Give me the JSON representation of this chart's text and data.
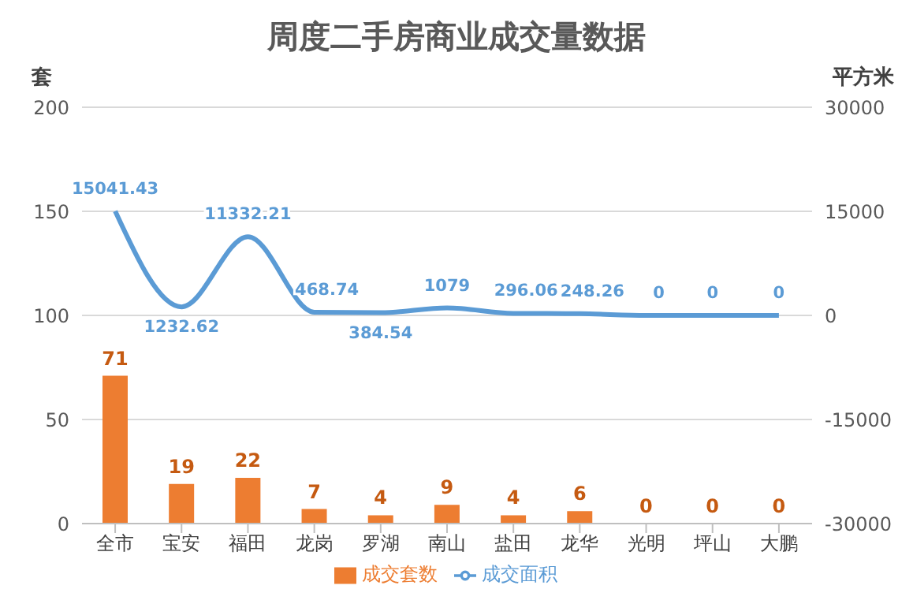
{
  "chart_data": {
    "type": "bar",
    "title": "周度二手房商业成交量数据",
    "ylabel": "套",
    "y2label": "平方米",
    "categories": [
      "全市",
      "宝安",
      "福田",
      "龙岗",
      "罗湖",
      "南山",
      "盐田",
      "龙华",
      "光明",
      "坪山",
      "大鹏"
    ],
    "series": [
      {
        "name": "成交套数",
        "color": "#ed7d31",
        "values": [
          71,
          19,
          22,
          7,
          4,
          9,
          4,
          6,
          0,
          0,
          0
        ]
      },
      {
        "name": "成交面积",
        "type": "line",
        "axis": "y2",
        "color": "#5b9bd5",
        "values": [
          15041.43,
          1232.62,
          11332.21,
          468.74,
          384.54,
          1079,
          296.06,
          248.26,
          0,
          0,
          0
        ]
      }
    ],
    "ylim": [
      0,
      200
    ],
    "yticks": [
      0,
      50,
      100,
      150,
      200
    ],
    "y2lim": [
      -30000,
      30000
    ],
    "y2ticks": [
      -30000,
      -15000,
      0,
      15000,
      30000
    ],
    "grid": "y",
    "legend": "bottom",
    "data_labels": true,
    "marker": "none",
    "line_style": "solid"
  }
}
